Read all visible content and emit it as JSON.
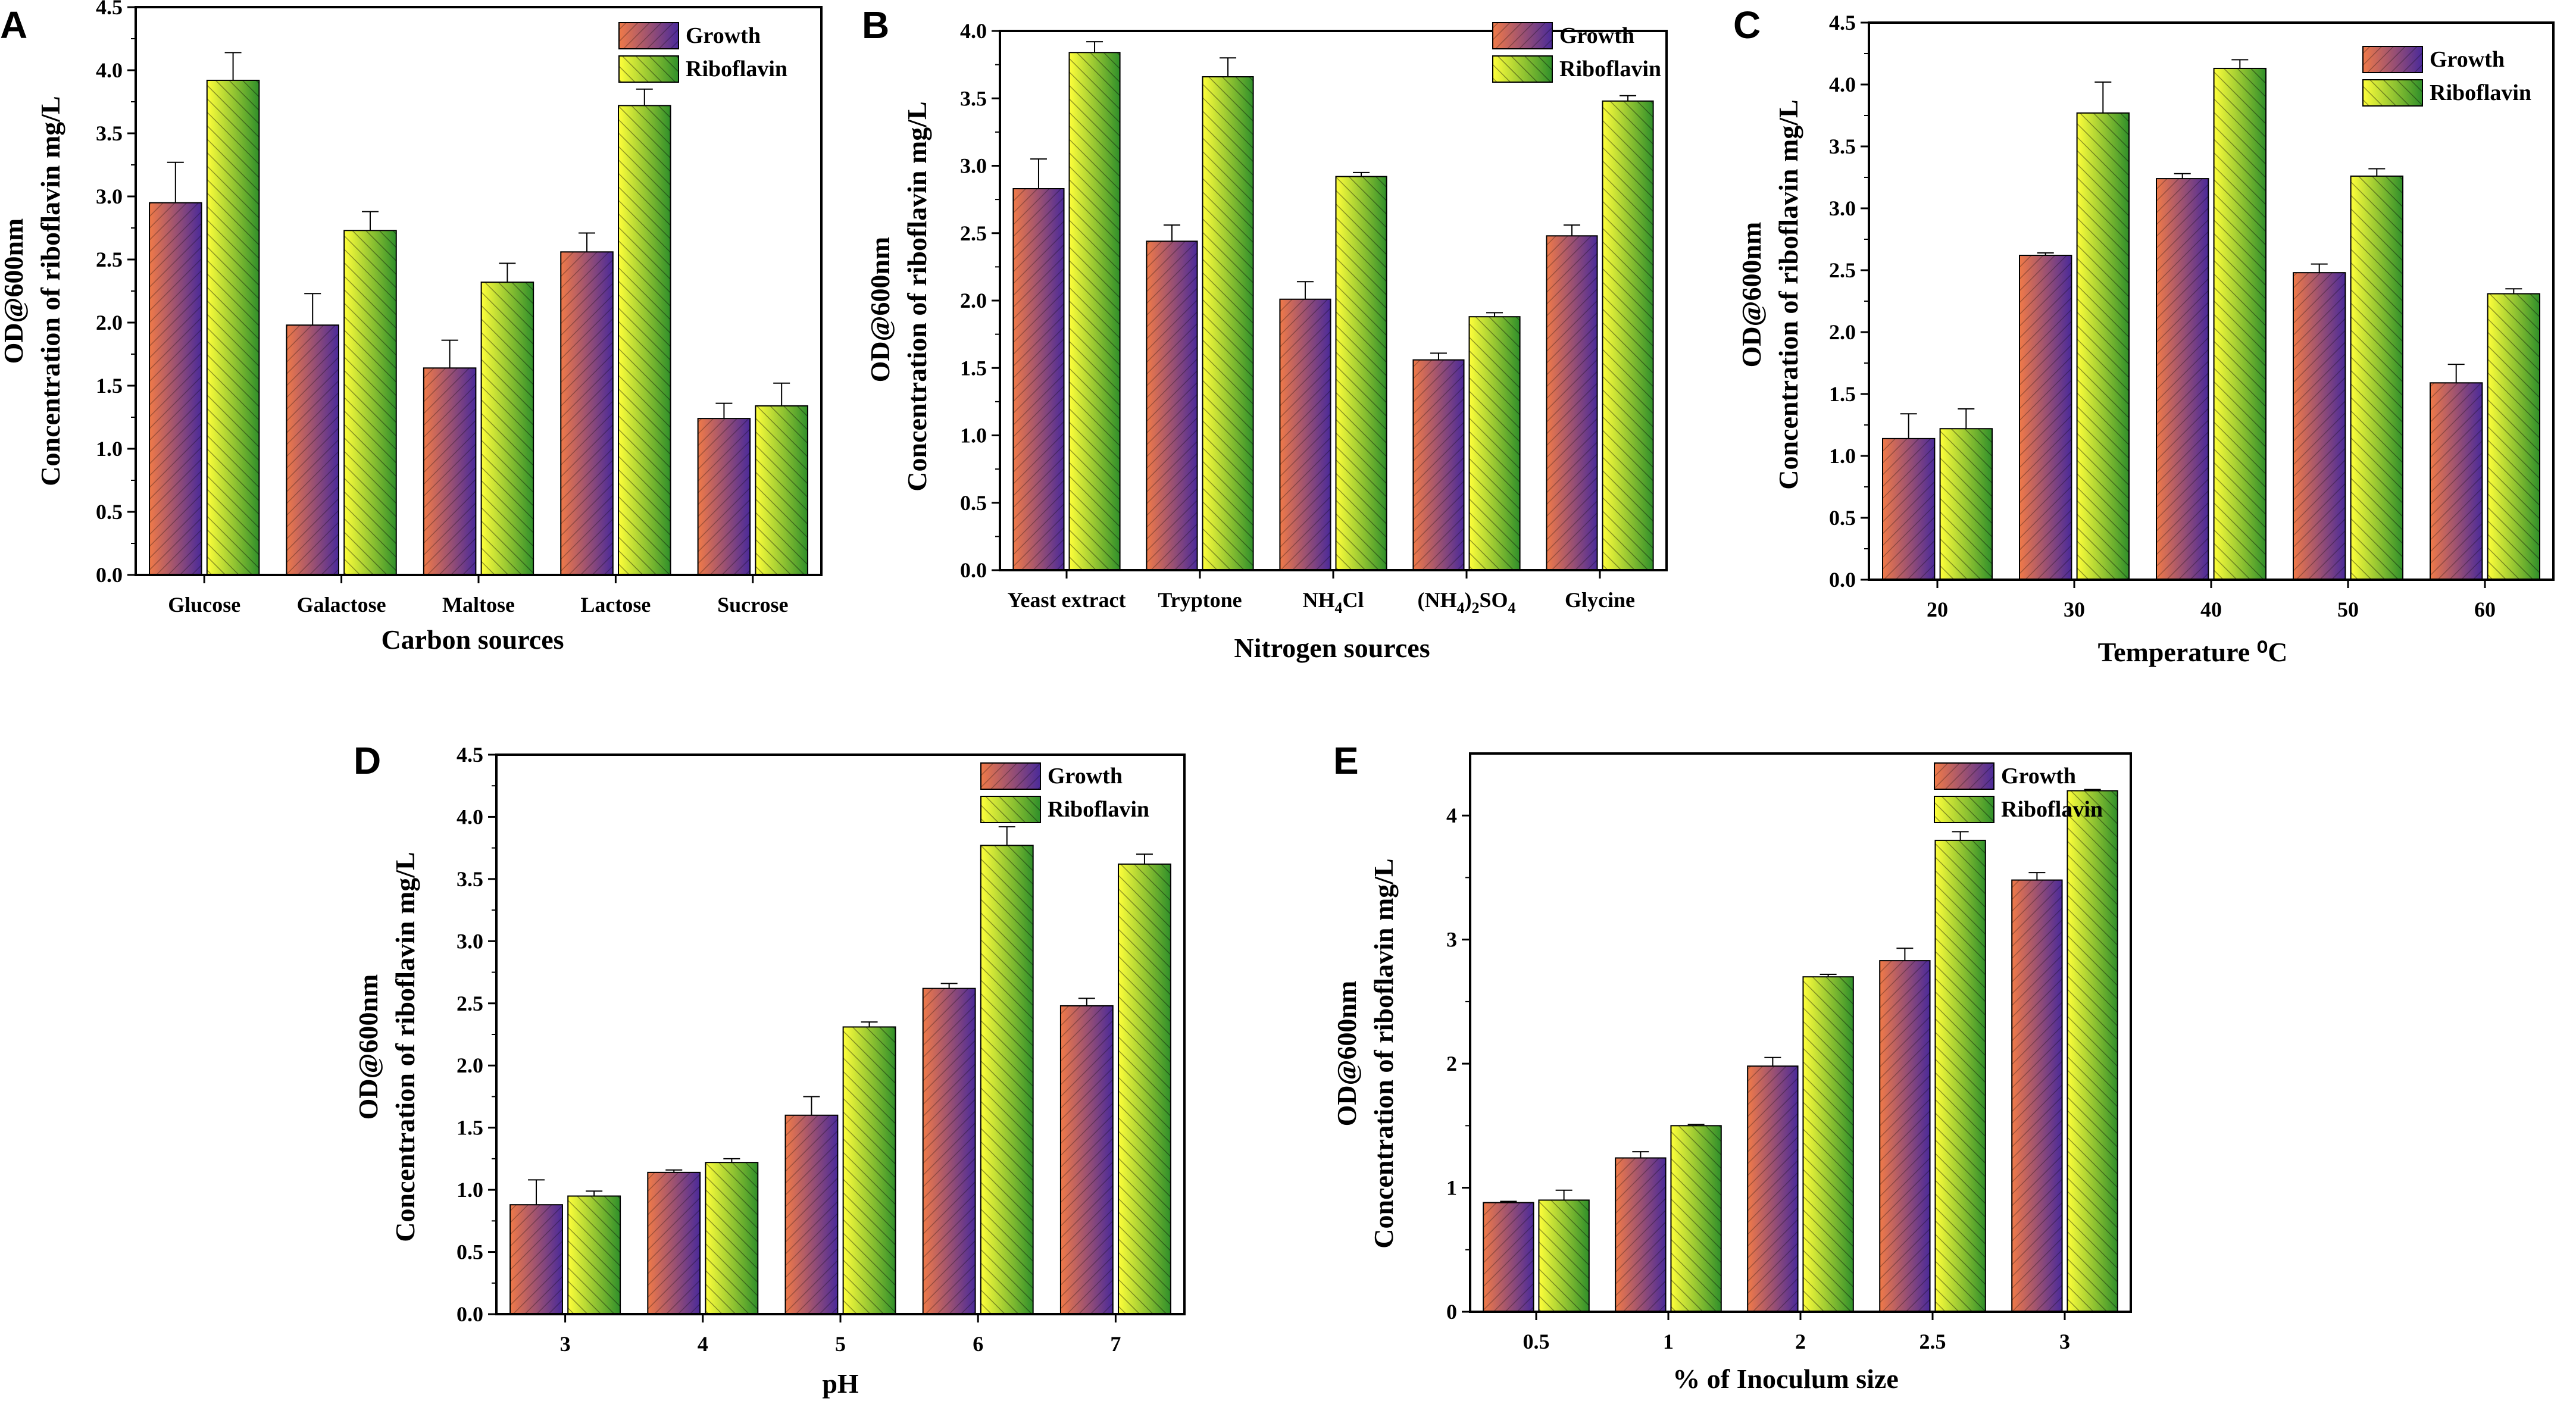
{
  "colors": {
    "growth_start": "#f07a48",
    "growth_end": "#4a2a9a",
    "riboflavin_start": "#ffff3a",
    "riboflavin_end": "#2f8f2a",
    "axis": "#000000"
  },
  "chart_data": [
    {
      "panel": "A",
      "type": "bar",
      "categories": [
        "Glucose",
        "Galactose",
        "Maltose",
        "Lactose",
        "Sucrose"
      ],
      "xlabel": "Carbon sources",
      "ylabel_line1": "OD@600nm",
      "ylabel_line2": "Concentration of riboflavin mg/L",
      "ylim": [
        0,
        4.5
      ],
      "ytick_values": [
        0,
        0.5,
        1.0,
        1.5,
        2.0,
        2.5,
        3.0,
        3.5,
        4.0,
        4.5
      ],
      "ytick_labels": [
        "0.0",
        "0.5",
        "1.0",
        "1.5",
        "2.0",
        "2.5",
        "3.0",
        "3.5",
        "4.0",
        "4.5"
      ],
      "series": [
        {
          "name": "Growth",
          "values": [
            2.95,
            1.98,
            1.64,
            2.56,
            1.24
          ],
          "errors": [
            0.32,
            0.25,
            0.22,
            0.15,
            0.12
          ]
        },
        {
          "name": "Riboflavin",
          "values": [
            3.92,
            2.73,
            2.32,
            3.72,
            1.34
          ],
          "errors": [
            0.22,
            0.15,
            0.15,
            0.13,
            0.18
          ]
        }
      ],
      "legend_position": "top-right"
    },
    {
      "panel": "B",
      "type": "bar",
      "categories": [
        "Yeast extract",
        "Tryptone",
        "NH4Cl",
        "(NH4)2SO4",
        "Glycine"
      ],
      "xlabel": "Nitrogen sources",
      "ylabel_line1": "OD@600nm",
      "ylabel_line2": "Concentration of riboflavin mg/L",
      "ylim": [
        0,
        4.0
      ],
      "ytick_values": [
        0,
        0.5,
        1.0,
        1.5,
        2.0,
        2.5,
        3.0,
        3.5,
        4.0
      ],
      "ytick_labels": [
        "0.0",
        "0.5",
        "1.0",
        "1.5",
        "2.0",
        "2.5",
        "3.0",
        "3.5",
        "4.0"
      ],
      "series": [
        {
          "name": "Growth",
          "values": [
            2.83,
            2.44,
            2.01,
            1.56,
            2.48
          ],
          "errors": [
            0.22,
            0.12,
            0.13,
            0.05,
            0.08
          ]
        },
        {
          "name": "Riboflavin",
          "values": [
            3.84,
            3.66,
            2.92,
            1.88,
            3.48
          ],
          "errors": [
            0.08,
            0.14,
            0.03,
            0.03,
            0.04
          ]
        }
      ],
      "legend_position": "top-right"
    },
    {
      "panel": "C",
      "type": "bar",
      "categories": [
        "20",
        "30",
        "40",
        "50",
        "60"
      ],
      "xlabel": "Temperature ⁰C",
      "ylabel_line1": "OD@600nm",
      "ylabel_line2": "Concentration of riboflavin mg/L",
      "ylim": [
        0,
        4.5
      ],
      "ytick_values": [
        0,
        0.5,
        1.0,
        1.5,
        2.0,
        2.5,
        3.0,
        3.5,
        4.0,
        4.5
      ],
      "ytick_labels": [
        "0.0",
        "0.5",
        "1.0",
        "1.5",
        "2.0",
        "2.5",
        "3.0",
        "3.5",
        "4.0",
        "4.5"
      ],
      "series": [
        {
          "name": "Growth",
          "values": [
            1.14,
            2.62,
            3.24,
            2.48,
            1.59
          ],
          "errors": [
            0.2,
            0.02,
            0.04,
            0.07,
            0.15
          ]
        },
        {
          "name": "Riboflavin",
          "values": [
            1.22,
            3.77,
            4.13,
            3.26,
            2.31
          ],
          "errors": [
            0.16,
            0.25,
            0.07,
            0.06,
            0.04
          ]
        }
      ],
      "legend_position": "top-right"
    },
    {
      "panel": "D",
      "type": "bar",
      "categories": [
        "3",
        "4",
        "5",
        "6",
        "7"
      ],
      "xlabel": "pH",
      "ylabel_line1": "OD@600nm",
      "ylabel_line2": "Concentration of riboflavin mg/L",
      "ylim": [
        0,
        4.5
      ],
      "ytick_values": [
        0,
        0.5,
        1.0,
        1.5,
        2.0,
        2.5,
        3.0,
        3.5,
        4.0,
        4.5
      ],
      "ytick_labels": [
        "0.0",
        "0.5",
        "1.0",
        "1.5",
        "2.0",
        "2.5",
        "3.0",
        "3.5",
        "4.0",
        "4.5"
      ],
      "series": [
        {
          "name": "Growth",
          "values": [
            0.88,
            1.14,
            1.6,
            2.62,
            2.48
          ],
          "errors": [
            0.2,
            0.02,
            0.15,
            0.04,
            0.06
          ]
        },
        {
          "name": "Riboflavin",
          "values": [
            0.95,
            1.22,
            2.31,
            3.77,
            3.62
          ],
          "errors": [
            0.04,
            0.03,
            0.04,
            0.15,
            0.08
          ]
        }
      ],
      "legend_position": "top-right"
    },
    {
      "panel": "E",
      "type": "bar",
      "categories": [
        "0.5",
        "1",
        "2",
        "2.5",
        "3"
      ],
      "xlabel": "% of Inoculum size",
      "ylabel_line1": "OD@600nm",
      "ylabel_line2": "Concentration of riboflavin mg/L",
      "ylim": [
        0,
        4.5
      ],
      "ytick_values": [
        0,
        1,
        2,
        3,
        4
      ],
      "ytick_labels": [
        "0",
        "1",
        "2",
        "3",
        "4"
      ],
      "series": [
        {
          "name": "Growth",
          "values": [
            0.88,
            1.24,
            1.98,
            2.83,
            3.48
          ],
          "errors": [
            0.01,
            0.05,
            0.07,
            0.1,
            0.06
          ]
        },
        {
          "name": "Riboflavin",
          "values": [
            0.9,
            1.5,
            2.7,
            3.8,
            4.2
          ],
          "errors": [
            0.08,
            0.01,
            0.02,
            0.07,
            0.01
          ]
        }
      ],
      "legend_position": "top-right"
    }
  ]
}
